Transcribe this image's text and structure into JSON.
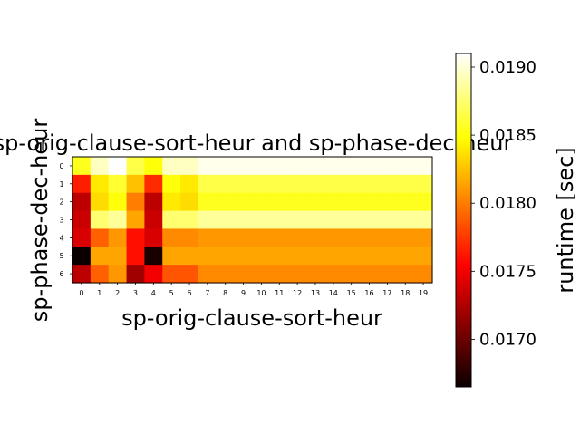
{
  "chart_data": {
    "type": "heatmap",
    "title": "sp-orig-clause-sort-heur and sp-phase-dec-heur",
    "xlabel": "sp-orig-clause-sort-heur",
    "ylabel": "sp-phase-dec-heur",
    "x_ticks": [
      "0",
      "1",
      "2",
      "3",
      "4",
      "5",
      "6",
      "7",
      "8",
      "9",
      "10",
      "11",
      "12",
      "13",
      "14",
      "15",
      "16",
      "17",
      "18",
      "19"
    ],
    "y_ticks": [
      "0",
      "1",
      "2",
      "3",
      "4",
      "5",
      "6"
    ],
    "colorbar": {
      "label": "runtime [sec]",
      "colormap": "hot",
      "vmin": 0.01665,
      "vmax": 0.0191,
      "ticks": [
        "0.0170",
        "0.0175",
        "0.0180",
        "0.0185",
        "0.0190"
      ],
      "tick_values": [
        0.017,
        0.0175,
        0.018,
        0.0185,
        0.019
      ]
    },
    "values": [
      [
        0.01855,
        0.01895,
        0.0191,
        0.01865,
        0.0185,
        0.01895,
        0.01895,
        0.01905,
        0.01905,
        0.01905,
        0.01905,
        0.01905,
        0.01905,
        0.01905,
        0.01905,
        0.01905,
        0.01905,
        0.01905,
        0.01905,
        0.01905
      ],
      [
        0.01765,
        0.0184,
        0.0186,
        0.01825,
        0.0177,
        0.0185,
        0.0184,
        0.01865,
        0.01865,
        0.01865,
        0.01865,
        0.01865,
        0.01865,
        0.01865,
        0.01865,
        0.01865,
        0.01865,
        0.01865,
        0.01865,
        0.01865
      ],
      [
        0.0173,
        0.01835,
        0.0185,
        0.018,
        0.0173,
        0.0184,
        0.01835,
        0.01855,
        0.01855,
        0.01855,
        0.01855,
        0.01855,
        0.01855,
        0.01855,
        0.01855,
        0.01855,
        0.01855,
        0.01855,
        0.01855,
        0.01855
      ],
      [
        0.01735,
        0.01875,
        0.01885,
        0.01815,
        0.01735,
        0.01875,
        0.01875,
        0.01885,
        0.01885,
        0.01885,
        0.01885,
        0.01885,
        0.01885,
        0.01885,
        0.01885,
        0.01885,
        0.01885,
        0.01885,
        0.01885,
        0.01885
      ],
      [
        0.0174,
        0.0179,
        0.0181,
        0.0176,
        0.0174,
        0.01805,
        0.01805,
        0.0181,
        0.0181,
        0.0181,
        0.0181,
        0.0181,
        0.0181,
        0.0181,
        0.0181,
        0.0181,
        0.0181,
        0.0181,
        0.0181,
        0.0181
      ],
      [
        0.01665,
        0.01815,
        0.01815,
        0.0176,
        0.0167,
        0.01815,
        0.01815,
        0.01815,
        0.01815,
        0.01815,
        0.01815,
        0.01815,
        0.01815,
        0.01815,
        0.01815,
        0.01815,
        0.01815,
        0.01815,
        0.01815,
        0.01815
      ],
      [
        0.0173,
        0.0179,
        0.0181,
        0.0172,
        0.0175,
        0.01785,
        0.01785,
        0.01805,
        0.01805,
        0.01805,
        0.01805,
        0.01805,
        0.01805,
        0.01805,
        0.01805,
        0.01805,
        0.01805,
        0.01805,
        0.01805,
        0.01805
      ]
    ]
  }
}
